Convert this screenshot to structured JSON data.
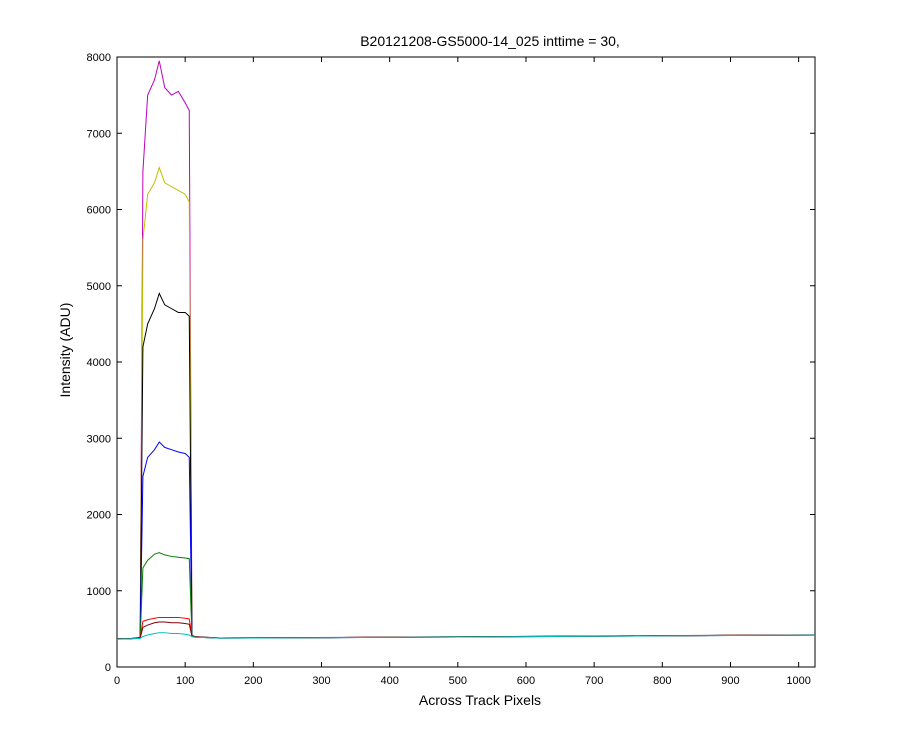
{
  "chart_data": {
    "type": "line",
    "title": "B20121208-GS5000-14_025 inttime = 30,",
    "x_label": "Across Track Pixels",
    "y_label": "Intensity (ADU)",
    "x": [
      0,
      20,
      34,
      38,
      45,
      55,
      62,
      70,
      80,
      90,
      100,
      106,
      110,
      114,
      150,
      200,
      300,
      400,
      500,
      600,
      700,
      800,
      900,
      1024
    ],
    "series": [
      {
        "color": "#bf00bf",
        "values": [
          370,
          372,
          390,
          6500,
          7500,
          7700,
          7950,
          7600,
          7500,
          7550,
          7400,
          7300,
          420,
          400,
          380,
          382,
          386,
          390,
          395,
          400,
          405,
          410,
          415,
          420
        ]
      },
      {
        "color": "#bfbf00",
        "values": [
          368,
          371,
          388,
          5600,
          6200,
          6350,
          6550,
          6350,
          6300,
          6250,
          6200,
          6100,
          415,
          398,
          379,
          381,
          385,
          390,
          394,
          399,
          404,
          409,
          414,
          419
        ]
      },
      {
        "color": "#000000",
        "values": [
          372,
          373,
          386,
          4200,
          4500,
          4700,
          4900,
          4750,
          4700,
          4650,
          4650,
          4600,
          412,
          396,
          381,
          383,
          387,
          391,
          396,
          401,
          406,
          411,
          416,
          421
        ]
      },
      {
        "color": "#0000ff",
        "values": [
          366,
          369,
          384,
          2500,
          2750,
          2850,
          2950,
          2880,
          2850,
          2820,
          2800,
          2750,
          410,
          394,
          378,
          380,
          384,
          389,
          393,
          398,
          403,
          408,
          413,
          418
        ]
      },
      {
        "color": "#008000",
        "values": [
          371,
          372,
          382,
          1300,
          1400,
          1480,
          1500,
          1470,
          1450,
          1440,
          1430,
          1420,
          408,
          395,
          380,
          382,
          386,
          391,
          395,
          400,
          405,
          410,
          415,
          420
        ]
      },
      {
        "color": "#ff0000",
        "values": [
          369,
          371,
          380,
          600,
          620,
          640,
          650,
          650,
          650,
          650,
          640,
          630,
          405,
          393,
          379,
          381,
          385,
          390,
          394,
          399,
          404,
          409,
          414,
          419
        ]
      },
      {
        "color": "#7f0000",
        "values": [
          370,
          372,
          378,
          520,
          550,
          580,
          590,
          590,
          580,
          580,
          570,
          560,
          402,
          392,
          380,
          382,
          386,
          390,
          395,
          400,
          405,
          410,
          415,
          420
        ]
      },
      {
        "color": "#00bfbf",
        "values": [
          367,
          370,
          376,
          400,
          420,
          440,
          450,
          450,
          440,
          440,
          430,
          420,
          398,
          390,
          378,
          380,
          384,
          389,
          393,
          398,
          403,
          408,
          413,
          418
        ]
      }
    ],
    "xlim": [
      0,
      1024
    ],
    "ylim": [
      0,
      8000
    ],
    "xticks": [
      0,
      100,
      200,
      300,
      400,
      500,
      600,
      700,
      800,
      900,
      1000
    ],
    "yticks": [
      0,
      1000,
      2000,
      3000,
      4000,
      5000,
      6000,
      7000,
      8000
    ],
    "grid": false
  }
}
